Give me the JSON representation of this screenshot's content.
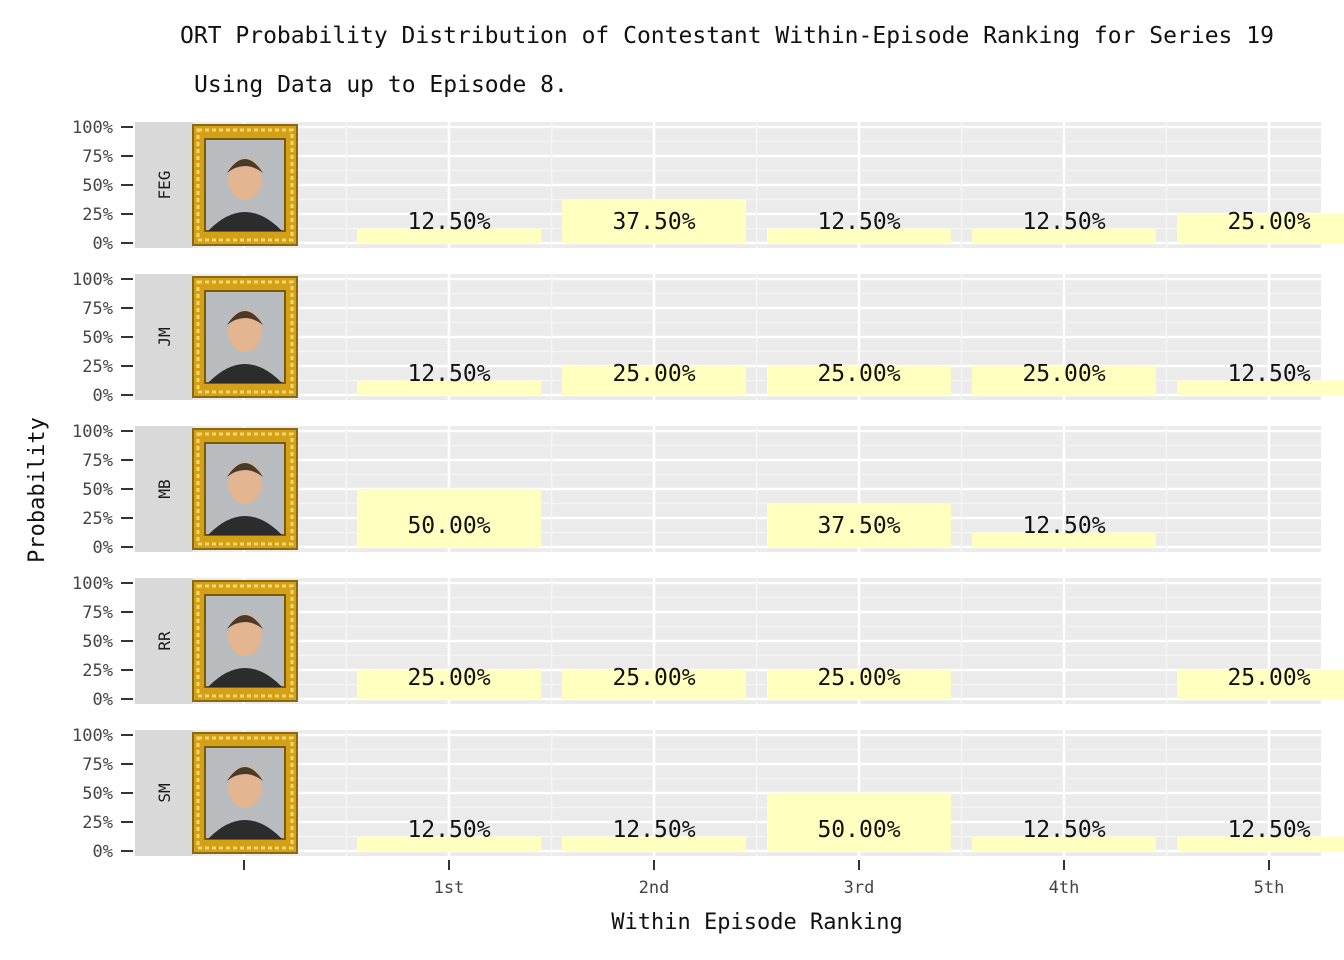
{
  "chart_data": {
    "type": "bar",
    "title": "ORT Probability Distribution of Contestant Within-Episode Ranking for Series 19",
    "subtitle": "Using Data up to Episode 8.",
    "xlabel": "Within Episode Ranking",
    "ylabel": "Probability",
    "categories": [
      "1st",
      "2nd",
      "3rd",
      "4th",
      "5th"
    ],
    "y_ticks": [
      "0%",
      "25%",
      "50%",
      "75%",
      "100%"
    ],
    "ylim": [
      0,
      1
    ],
    "bar_color": "#ffffc0",
    "panel_color": "#ebebeb",
    "strip_color": "#d9d9d9",
    "frame_color": "#d4a017",
    "grid": true,
    "facets": [
      {
        "name": "FEG",
        "values": [
          0.125,
          0.375,
          0.125,
          0.125,
          0.25
        ],
        "labels": [
          "12.50%",
          "37.50%",
          "12.50%",
          "12.50%",
          "25.00%"
        ]
      },
      {
        "name": "JM",
        "values": [
          0.125,
          0.25,
          0.25,
          0.25,
          0.125
        ],
        "labels": [
          "12.50%",
          "25.00%",
          "25.00%",
          "25.00%",
          "12.50%"
        ]
      },
      {
        "name": "MB",
        "values": [
          0.5,
          0,
          0.375,
          0.125,
          0
        ],
        "labels": [
          "50.00%",
          "",
          "37.50%",
          "12.50%",
          ""
        ]
      },
      {
        "name": "RR",
        "values": [
          0.25,
          0.25,
          0.25,
          0,
          0.25
        ],
        "labels": [
          "25.00%",
          "25.00%",
          "25.00%",
          "",
          "25.00%"
        ]
      },
      {
        "name": "SM",
        "values": [
          0.125,
          0.125,
          0.5,
          0.125,
          0.125
        ],
        "labels": [
          "12.50%",
          "12.50%",
          "50.00%",
          "12.50%",
          "12.50%"
        ]
      }
    ]
  }
}
